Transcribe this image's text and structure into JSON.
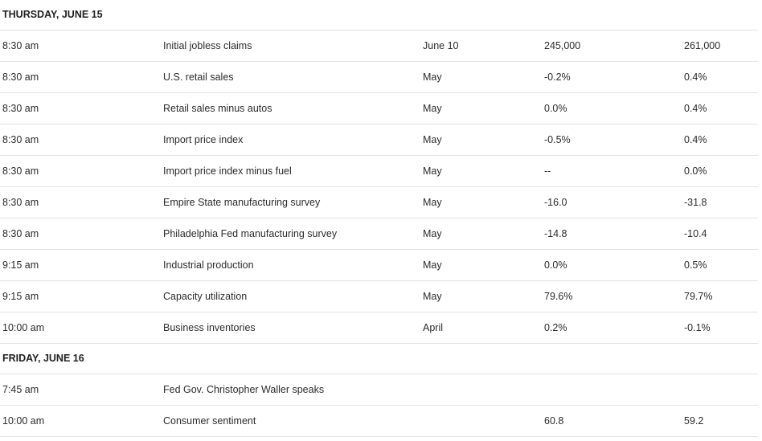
{
  "days": [
    {
      "label": "THURSDAY, JUNE 15",
      "rows": [
        {
          "time": "8:30 am",
          "event": "Initial jobless claims",
          "period": "June 10",
          "forecast": "245,000",
          "previous": "261,000"
        },
        {
          "time": "8:30 am",
          "event": "U.S. retail sales",
          "period": "May",
          "forecast": "-0.2%",
          "previous": "0.4%"
        },
        {
          "time": "8:30 am",
          "event": "Retail sales minus autos",
          "period": "May",
          "forecast": "0.0%",
          "previous": "0.4%"
        },
        {
          "time": "8:30 am",
          "event": "Import price index",
          "period": "May",
          "forecast": "-0.5%",
          "previous": "0.4%"
        },
        {
          "time": "8:30 am",
          "event": "Import price index minus fuel",
          "period": "May",
          "forecast": "--",
          "previous": "0.0%"
        },
        {
          "time": "8:30 am",
          "event": "Empire State manufacturing survey",
          "period": "May",
          "forecast": "-16.0",
          "previous": "-31.8"
        },
        {
          "time": "8:30 am",
          "event": "Philadelphia Fed manufacturing survey",
          "period": "May",
          "forecast": "-14.8",
          "previous": "-10.4"
        },
        {
          "time": "9:15 am",
          "event": "Industrial production",
          "period": "May",
          "forecast": "0.0%",
          "previous": "0.5%"
        },
        {
          "time": "9:15 am",
          "event": "Capacity utilization",
          "period": "May",
          "forecast": "79.6%",
          "previous": "79.7%"
        },
        {
          "time": "10:00 am",
          "event": "Business inventories",
          "period": "April",
          "forecast": "0.2%",
          "previous": "-0.1%"
        }
      ]
    },
    {
      "label": "FRIDAY, JUNE 16",
      "rows": [
        {
          "time": "7:45 am",
          "event": "Fed Gov. Christopher Waller speaks",
          "period": "",
          "forecast": "",
          "previous": ""
        },
        {
          "time": "10:00 am",
          "event": "Consumer sentiment",
          "period": "",
          "forecast": "60.8",
          "previous": "59.2"
        }
      ]
    }
  ]
}
